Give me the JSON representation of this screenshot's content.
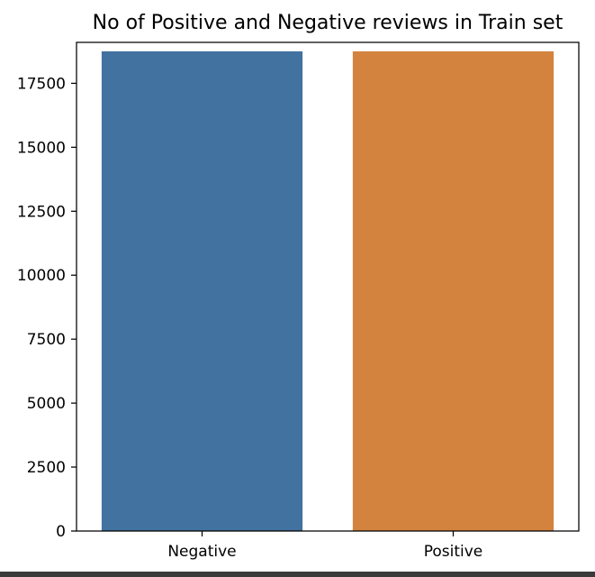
{
  "chart_data": {
    "type": "bar",
    "title": "No of Positive and Negative reviews in Train set",
    "xlabel": "",
    "ylabel": "",
    "categories": [
      "Negative",
      "Positive"
    ],
    "values": [
      18750,
      18750
    ],
    "colors": [
      "#4272a0",
      "#d3833e"
    ],
    "ylim": [
      0,
      19100
    ],
    "yticks": [
      0,
      2500,
      5000,
      7500,
      10000,
      12500,
      15000,
      17500
    ],
    "grid": false,
    "legend": "none"
  }
}
